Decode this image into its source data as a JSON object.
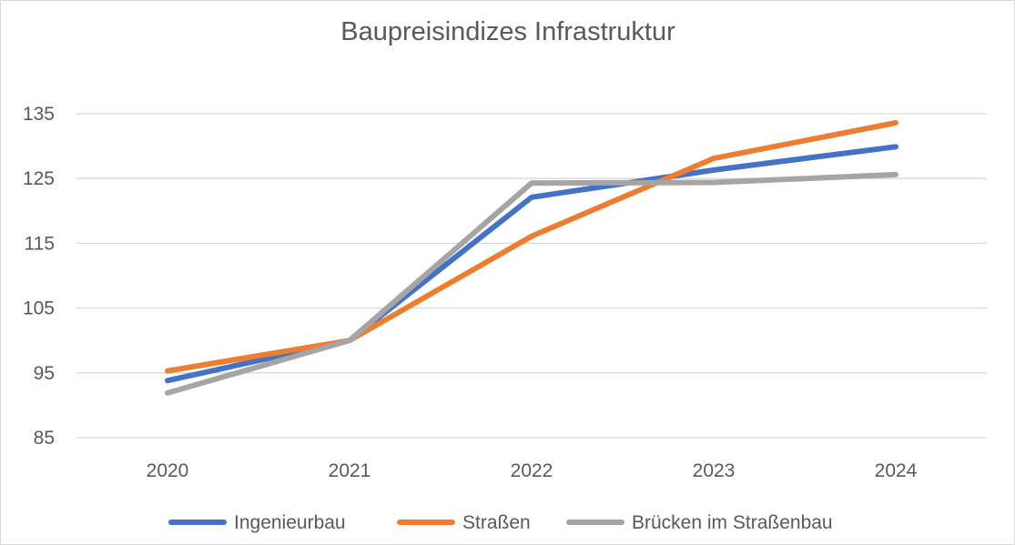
{
  "chart_data": {
    "type": "line",
    "title": "Baupreisindizes Infrastruktur",
    "xlabel": "",
    "ylabel": "",
    "categories": [
      "2020",
      "2021",
      "2022",
      "2023",
      "2024"
    ],
    "ylim": [
      85,
      135
    ],
    "yticks": [
      85,
      95,
      105,
      115,
      125,
      135
    ],
    "grid": true,
    "legend_position": "bottom",
    "series": [
      {
        "name": "Ingenieurbau",
        "color": "#4472C4",
        "values": [
          93.8,
          100,
          122.1,
          126.3,
          129.9
        ]
      },
      {
        "name": "Straßen",
        "color": "#ED7D31",
        "values": [
          95.3,
          100,
          116.1,
          128.1,
          133.6
        ]
      },
      {
        "name": "Brücken im Straßenbau",
        "color": "#A5A5A5",
        "values": [
          91.9,
          100,
          124.3,
          124.4,
          125.6
        ]
      }
    ]
  }
}
